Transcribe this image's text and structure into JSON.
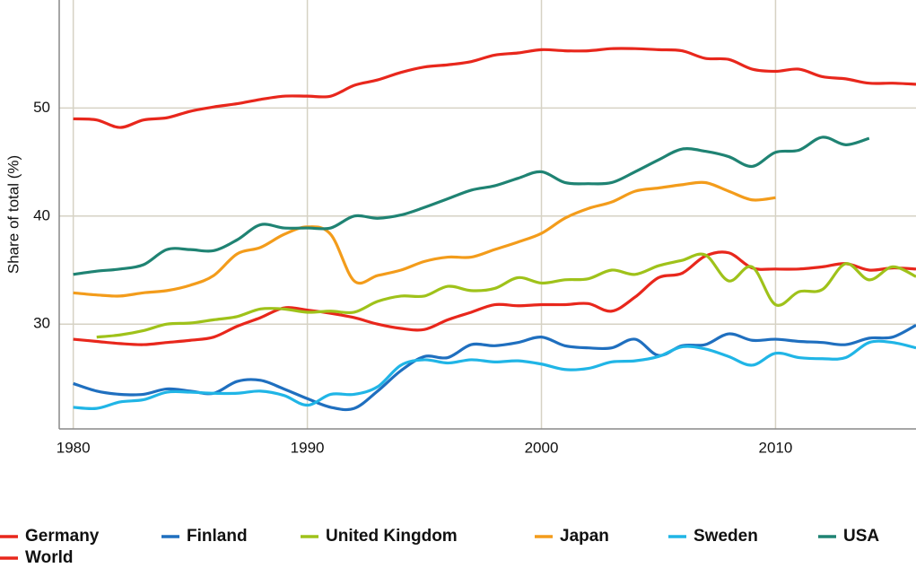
{
  "chart_data": {
    "type": "line",
    "ylabel": "Share of total (%)",
    "x": [
      1980,
      1981,
      1982,
      1983,
      1984,
      1985,
      1986,
      1987,
      1988,
      1989,
      1990,
      1991,
      1992,
      1993,
      1994,
      1995,
      1996,
      1997,
      1998,
      1999,
      2000,
      2001,
      2002,
      2003,
      2004,
      2005,
      2006,
      2007,
      2008,
      2009,
      2010,
      2011,
      2012,
      2013,
      2014,
      2015,
      2016
    ],
    "xlim": [
      1979.4,
      2016
    ],
    "xticks": [
      1980,
      1990,
      2000,
      2010
    ],
    "ylim": [
      20.3,
      60
    ],
    "yticks": [
      30,
      40,
      50
    ],
    "grid": true,
    "legend": "bottom",
    "series": [
      {
        "name": "Germany",
        "color": "#e8271c",
        "values": [
          28.6,
          28.4,
          28.2,
          28.1,
          28.3,
          28.5,
          28.8,
          29.8,
          30.6,
          31.5,
          31.3,
          31.0,
          30.6,
          30.0,
          29.6,
          29.5,
          30.4,
          31.1,
          31.8,
          31.7,
          31.8,
          31.8,
          31.9,
          31.2,
          32.5,
          34.3,
          34.7,
          36.3,
          36.6,
          35.2,
          35.1,
          35.1,
          35.3,
          35.6,
          35.0,
          35.2,
          35.1
        ]
      },
      {
        "name": "Finland",
        "color": "#1f6fbf",
        "values": [
          24.5,
          23.8,
          23.5,
          23.5,
          24.0,
          23.8,
          23.6,
          24.7,
          24.8,
          24.0,
          23.1,
          22.3,
          22.2,
          23.8,
          25.7,
          27.0,
          26.9,
          28.1,
          28.0,
          28.3,
          28.8,
          28.0,
          27.8,
          27.8,
          28.6,
          27.1,
          28.0,
          28.1,
          29.1,
          28.5,
          28.6,
          28.4,
          28.3,
          28.1,
          28.7,
          28.8,
          29.9
        ]
      },
      {
        "name": "United Kingdom",
        "color": "#9fc21a",
        "values": [
          null,
          28.8,
          29.0,
          29.4,
          30.0,
          30.1,
          30.4,
          30.7,
          31.4,
          31.4,
          31.1,
          31.2,
          31.1,
          32.1,
          32.6,
          32.6,
          33.5,
          33.1,
          33.3,
          34.3,
          33.8,
          34.1,
          34.2,
          35.0,
          34.6,
          35.4,
          35.9,
          36.4,
          34.0,
          35.3,
          31.8,
          33.0,
          33.2,
          35.6,
          34.1,
          35.3,
          34.4
        ]
      },
      {
        "name": "Japan",
        "color": "#f39c1b",
        "values": [
          32.9,
          32.7,
          32.6,
          32.9,
          33.1,
          33.6,
          34.5,
          36.5,
          37.1,
          38.3,
          39.0,
          38.3,
          34.0,
          34.5,
          35.0,
          35.8,
          36.2,
          36.2,
          36.9,
          37.6,
          38.4,
          39.8,
          40.7,
          41.3,
          42.3,
          42.6,
          42.9,
          43.1,
          42.3,
          41.5,
          41.7,
          null,
          null,
          null,
          null,
          null,
          null
        ]
      },
      {
        "name": "Sweden",
        "color": "#20b5e6",
        "values": [
          22.3,
          22.2,
          22.8,
          23.0,
          23.7,
          23.7,
          23.6,
          23.6,
          23.8,
          23.4,
          22.5,
          23.5,
          23.5,
          24.2,
          26.2,
          26.7,
          26.4,
          26.7,
          26.5,
          26.6,
          26.3,
          25.8,
          25.9,
          26.5,
          26.6,
          27.0,
          27.9,
          27.7,
          27.0,
          26.2,
          27.3,
          26.9,
          26.8,
          26.9,
          28.3,
          28.3,
          27.8
        ]
      },
      {
        "name": "USA",
        "color": "#1f8373",
        "values": [
          34.6,
          34.9,
          35.1,
          35.5,
          36.9,
          36.9,
          36.8,
          37.8,
          39.2,
          38.9,
          38.9,
          38.9,
          40.0,
          39.8,
          40.1,
          40.8,
          41.6,
          42.4,
          42.8,
          43.5,
          44.1,
          43.1,
          43.0,
          43.1,
          44.1,
          45.2,
          46.2,
          46.0,
          45.5,
          44.6,
          45.9,
          46.1,
          47.3,
          46.6,
          47.2,
          null,
          null
        ]
      },
      {
        "name": "World",
        "color": "#e8271c",
        "values": [
          49.0,
          48.9,
          48.2,
          48.9,
          49.1,
          49.7,
          50.1,
          50.4,
          50.8,
          51.1,
          51.1,
          51.1,
          52.1,
          52.6,
          53.3,
          53.8,
          54.0,
          54.3,
          54.9,
          55.1,
          55.4,
          55.3,
          55.3,
          55.5,
          55.5,
          55.4,
          55.3,
          54.6,
          54.5,
          53.6,
          53.4,
          53.6,
          52.9,
          52.7,
          52.3,
          52.3,
          52.2
        ]
      }
    ]
  }
}
